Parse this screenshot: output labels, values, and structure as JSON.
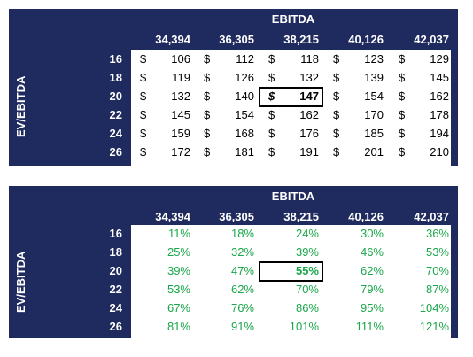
{
  "top_table": {
    "header": "EBITDA",
    "side_label": "EV/EBITDA",
    "columns": [
      "34,394",
      "36,305",
      "38,215",
      "40,126",
      "42,037"
    ],
    "rows": [
      {
        "label": "16",
        "values": [
          "106",
          "112",
          "118",
          "123",
          "129"
        ]
      },
      {
        "label": "18",
        "values": [
          "119",
          "126",
          "132",
          "139",
          "145"
        ]
      },
      {
        "label": "20",
        "values": [
          "132",
          "140",
          "147",
          "154",
          "162"
        ]
      },
      {
        "label": "22",
        "values": [
          "145",
          "154",
          "162",
          "170",
          "178"
        ]
      },
      {
        "label": "24",
        "values": [
          "159",
          "168",
          "176",
          "185",
          "194"
        ]
      },
      {
        "label": "26",
        "values": [
          "172",
          "181",
          "191",
          "201",
          "210"
        ]
      }
    ],
    "currency_symbol": "$"
  },
  "bottom_table": {
    "header": "EBITDA",
    "side_label": "EV/EBITDA",
    "columns": [
      "34,394",
      "36,305",
      "38,215",
      "40,126",
      "42,037"
    ],
    "rows": [
      {
        "label": "16",
        "values": [
          "11%",
          "18%",
          "24%",
          "30%",
          "36%"
        ]
      },
      {
        "label": "18",
        "values": [
          "25%",
          "32%",
          "39%",
          "46%",
          "53%"
        ]
      },
      {
        "label": "20",
        "values": [
          "39%",
          "47%",
          "55%",
          "62%",
          "70%"
        ]
      },
      {
        "label": "22",
        "values": [
          "53%",
          "62%",
          "70%",
          "79%",
          "87%"
        ]
      },
      {
        "label": "24",
        "values": [
          "67%",
          "76%",
          "86%",
          "95%",
          "104%"
        ]
      },
      {
        "label": "26",
        "values": [
          "81%",
          "91%",
          "101%",
          "111%",
          "121%"
        ]
      }
    ]
  },
  "colors": {
    "header_bg": "#1f2a5e",
    "pct_text": "#1aa64a"
  }
}
